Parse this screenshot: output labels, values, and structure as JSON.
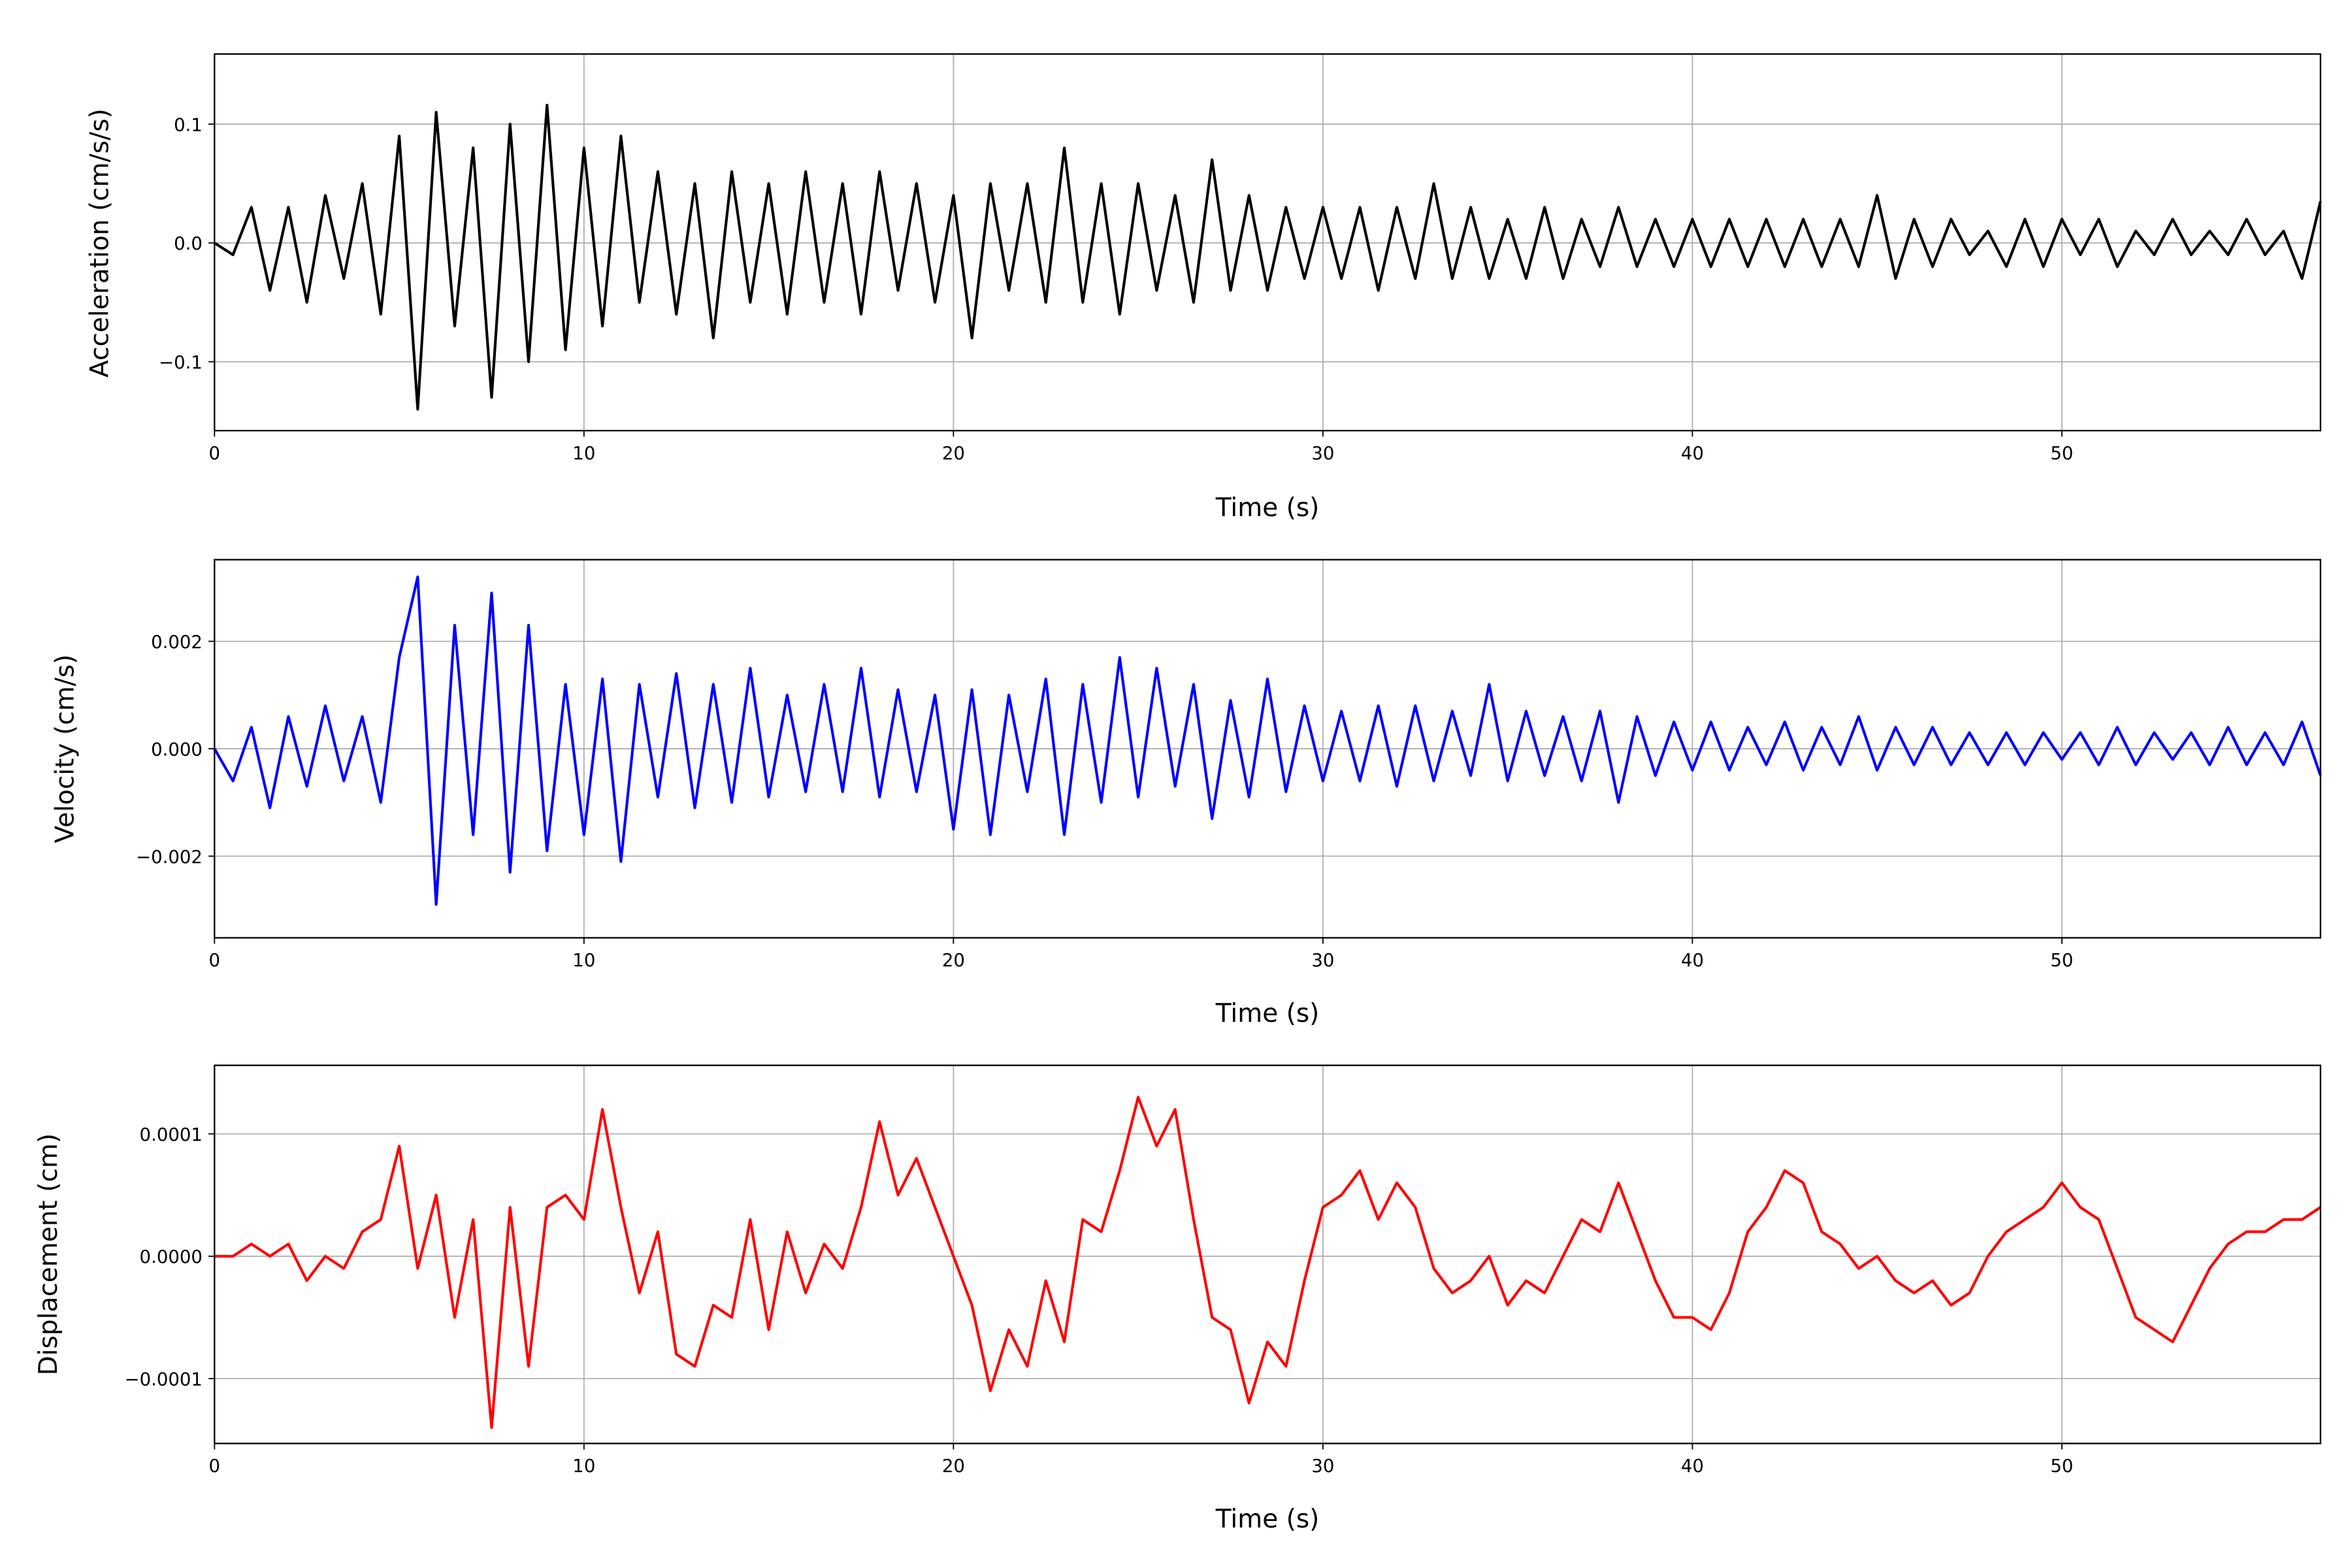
{
  "chart_data": [
    {
      "type": "line",
      "xlabel": "Time (s)",
      "ylabel": "Acceleration (cm/s/s)",
      "color": "#000000",
      "xlim": [
        0,
        57
      ],
      "ylim": [
        -0.158,
        0.159
      ],
      "grid": true,
      "xticks": [
        0,
        10,
        20,
        30,
        40,
        50
      ],
      "xtick_labels": [
        "0",
        "10",
        "20",
        "30",
        "40",
        "50"
      ],
      "yticks": [
        0.1,
        0.0,
        -0.1
      ],
      "ytick_labels": [
        "0.1",
        "0.0",
        "−0.1"
      ],
      "x_step": 0.5,
      "values": [
        0,
        -0.01,
        0.03,
        -0.04,
        0.03,
        -0.05,
        0.04,
        -0.03,
        0.05,
        -0.06,
        0.09,
        -0.14,
        0.11,
        -0.07,
        0.08,
        -0.13,
        0.1,
        -0.1,
        0.116,
        -0.09,
        0.08,
        -0.07,
        0.09,
        -0.05,
        0.06,
        -0.06,
        0.05,
        -0.08,
        0.06,
        -0.05,
        0.05,
        -0.06,
        0.06,
        -0.05,
        0.05,
        -0.06,
        0.06,
        -0.04,
        0.05,
        -0.05,
        0.04,
        -0.08,
        0.05,
        -0.04,
        0.05,
        -0.05,
        0.08,
        -0.05,
        0.05,
        -0.06,
        0.05,
        -0.04,
        0.04,
        -0.05,
        0.07,
        -0.04,
        0.04,
        -0.04,
        0.03,
        -0.03,
        0.03,
        -0.03,
        0.03,
        -0.04,
        0.03,
        -0.03,
        0.05,
        -0.03,
        0.03,
        -0.03,
        0.02,
        -0.03,
        0.03,
        -0.03,
        0.02,
        -0.02,
        0.03,
        -0.02,
        0.02,
        -0.02,
        0.02,
        -0.02,
        0.02,
        -0.02,
        0.02,
        -0.02,
        0.02,
        -0.02,
        0.02,
        -0.02,
        0.04,
        -0.03,
        0.02,
        -0.02,
        0.02,
        -0.01,
        0.01,
        -0.02,
        0.02,
        -0.02,
        0.02,
        -0.01,
        0.02,
        -0.02,
        0.01,
        -0.01,
        0.02,
        -0.01,
        0.01,
        -0.01,
        0.02,
        -0.01,
        0.01,
        -0.03,
        0.035
      ]
    },
    {
      "type": "line",
      "xlabel": "Time (s)",
      "ylabel": "Velocity (cm/s)",
      "color": "#0000ff",
      "xlim": [
        0,
        57
      ],
      "ylim": [
        -0.00352,
        0.00352
      ],
      "grid": true,
      "xticks": [
        0,
        10,
        20,
        30,
        40,
        50
      ],
      "xtick_labels": [
        "0",
        "10",
        "20",
        "30",
        "40",
        "50"
      ],
      "yticks": [
        0.002,
        0.0,
        -0.002
      ],
      "ytick_labels": [
        "0.002",
        "0.000",
        "−0.002"
      ],
      "x_step": 0.5,
      "values": [
        0,
        -0.0006,
        0.0004,
        -0.0011,
        0.0006,
        -0.0007,
        0.0008,
        -0.0006,
        0.0006,
        -0.001,
        0.0017,
        0.0032,
        -0.0029,
        0.0023,
        -0.0016,
        0.0029,
        -0.0023,
        0.0023,
        -0.0019,
        0.0012,
        -0.0016,
        0.0013,
        -0.0021,
        0.0012,
        -0.0009,
        0.0014,
        -0.0011,
        0.0012,
        -0.001,
        0.0015,
        -0.0009,
        0.001,
        -0.0008,
        0.0012,
        -0.0008,
        0.0015,
        -0.0009,
        0.0011,
        -0.0008,
        0.001,
        -0.0015,
        0.0011,
        -0.0016,
        0.001,
        -0.0008,
        0.0013,
        -0.0016,
        0.0012,
        -0.001,
        0.0017,
        -0.0009,
        0.0015,
        -0.0007,
        0.0012,
        -0.0013,
        0.0009,
        -0.0009,
        0.0013,
        -0.0008,
        0.0008,
        -0.0006,
        0.0007,
        -0.0006,
        0.0008,
        -0.0007,
        0.0008,
        -0.0006,
        0.0007,
        -0.0005,
        0.0012,
        -0.0006,
        0.0007,
        -0.0005,
        0.0006,
        -0.0006,
        0.0007,
        -0.001,
        0.0006,
        -0.0005,
        0.0005,
        -0.0004,
        0.0005,
        -0.0004,
        0.0004,
        -0.0003,
        0.0005,
        -0.0004,
        0.0004,
        -0.0003,
        0.0006,
        -0.0004,
        0.0004,
        -0.0003,
        0.0004,
        -0.0003,
        0.0003,
        -0.0003,
        0.0003,
        -0.0003,
        0.0003,
        -0.0002,
        0.0003,
        -0.0003,
        0.0004,
        -0.0003,
        0.0003,
        -0.0002,
        0.0003,
        -0.0003,
        0.0004,
        -0.0003,
        0.0003,
        -0.0003,
        0.0005,
        -0.0005
      ]
    },
    {
      "type": "line",
      "xlabel": "Time (s)",
      "ylabel": "Displacement (cm)",
      "color": "#ff0000",
      "xlim": [
        0,
        57
      ],
      "ylim": [
        -0.000153,
        0.000156
      ],
      "grid": true,
      "xticks": [
        0,
        10,
        20,
        30,
        40,
        50
      ],
      "xtick_labels": [
        "0",
        "10",
        "20",
        "30",
        "40",
        "50"
      ],
      "yticks": [
        0.0001,
        0.0,
        -0.0001
      ],
      "ytick_labels": [
        "0.0001",
        "0.0000",
        "−0.0001"
      ],
      "x_step": 0.5,
      "values": [
        0,
        0,
        1e-05,
        0,
        1e-05,
        -2e-05,
        0,
        -1e-05,
        2e-05,
        3e-05,
        9e-05,
        -1e-05,
        5e-05,
        -5e-05,
        3e-05,
        -0.00014,
        4e-05,
        -9e-05,
        4e-05,
        5e-05,
        3e-05,
        0.00012,
        4e-05,
        -3e-05,
        2e-05,
        -8e-05,
        -9e-05,
        -4e-05,
        -5e-05,
        3e-05,
        -6e-05,
        2e-05,
        -3e-05,
        1e-05,
        -1e-05,
        4e-05,
        0.00011,
        5e-05,
        8e-05,
        4e-05,
        0,
        -4e-05,
        -0.00011,
        -6e-05,
        -9e-05,
        -2e-05,
        -7e-05,
        3e-05,
        2e-05,
        7e-05,
        0.00013,
        9e-05,
        0.00012,
        3e-05,
        -5e-05,
        -6e-05,
        -0.00012,
        -7e-05,
        -9e-05,
        -2e-05,
        4e-05,
        5e-05,
        7e-05,
        3e-05,
        6e-05,
        4e-05,
        -1e-05,
        -3e-05,
        -2e-05,
        0,
        -4e-05,
        -2e-05,
        -3e-05,
        0,
        3e-05,
        2e-05,
        6e-05,
        2e-05,
        -2e-05,
        -5e-05,
        -5e-05,
        -6e-05,
        -3e-05,
        2e-05,
        4e-05,
        7e-05,
        6e-05,
        2e-05,
        1e-05,
        -1e-05,
        0,
        -2e-05,
        -3e-05,
        -2e-05,
        -4e-05,
        -3e-05,
        0,
        2e-05,
        3e-05,
        4e-05,
        6e-05,
        4e-05,
        3e-05,
        -1e-05,
        -5e-05,
        -6e-05,
        -7e-05,
        -4e-05,
        -1e-05,
        1e-05,
        2e-05,
        2e-05,
        3e-05,
        3e-05,
        4e-05
      ]
    }
  ]
}
